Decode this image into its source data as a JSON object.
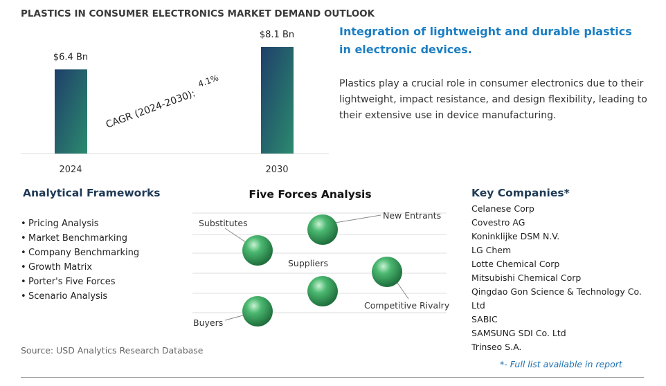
{
  "header": {
    "title": "PLASTICS IN CONSUMER ELECTRONICS MARKET DEMAND OUTLOOK"
  },
  "chart_data": {
    "type": "bar",
    "categories": [
      "2024",
      "2030"
    ],
    "values": [
      6.4,
      8.1
    ],
    "value_labels": [
      "$6.4 Bn",
      "$8.1 Bn"
    ],
    "annotations": [
      "CAGR (2024-2030):",
      "4.1%"
    ]
  },
  "highlight": {
    "heading": "Integration of lightweight and durable plastics in electronic devices.",
    "text": "Plastics play a crucial role in consumer electronics due to their lightweight, impact resistance, and design flexibility, leading to their extensive use in device manufacturing."
  },
  "frameworks": {
    "title": "Analytical Frameworks",
    "items": [
      "Pricing Analysis",
      "Market Benchmarking",
      "Company Benchmarking",
      "Growth Matrix",
      "Porter's Five Forces",
      "Scenario Analysis"
    ]
  },
  "five_forces": {
    "title": "Five Forces Analysis",
    "labels": [
      "Substitutes",
      "New Entrants",
      "Suppliers",
      "Competitive Rivalry",
      "Buyers"
    ]
  },
  "companies": {
    "title": "Key Companies*",
    "items": [
      "Celanese Corp",
      "Covestro AG",
      "Koninklijke DSM N.V.",
      "LG Chem",
      "Lotte Chemical Corp",
      "Mitsubishi Chemical Corp",
      "Qingdao Gon Science & Technology Co. Ltd",
      "SABIC",
      "SAMSUNG SDI Co. Ltd",
      "Trinseo S.A."
    ],
    "note": "*- Full list available in report"
  },
  "source": "Source: USD Analytics Research Database"
}
